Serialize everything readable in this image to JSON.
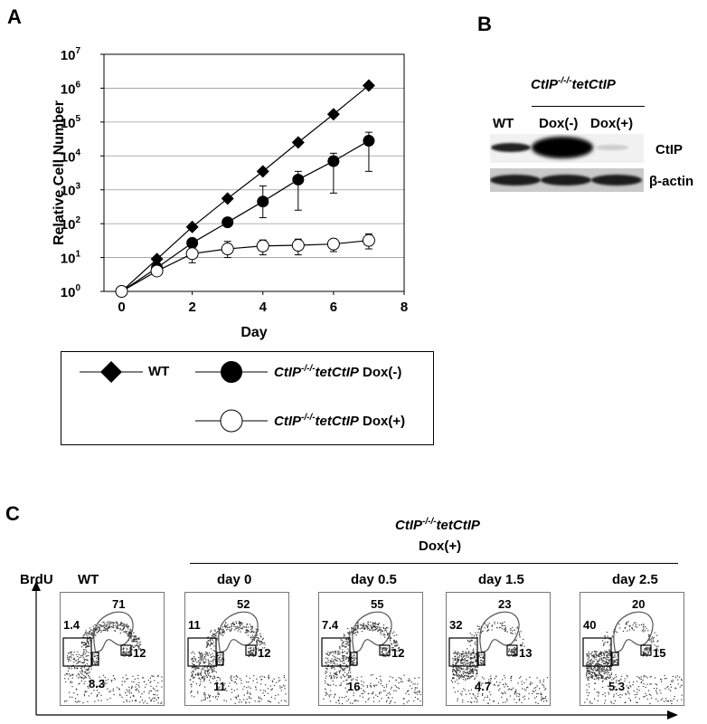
{
  "panel_a": {
    "letter": "A",
    "chart_data": {
      "type": "line",
      "xlabel": "Day",
      "ylabel": "Relative Cell Number",
      "yscale": "log",
      "xlim": [
        -0.5,
        8
      ],
      "ylim": [
        1,
        10000000
      ],
      "x_ticks": [
        "0",
        "2",
        "4",
        "6",
        "8"
      ],
      "y_ticks": [
        {
          "base": "10",
          "exp": "0"
        },
        {
          "base": "10",
          "exp": "1"
        },
        {
          "base": "10",
          "exp": "2"
        },
        {
          "base": "10",
          "exp": "3"
        },
        {
          "base": "10",
          "exp": "4"
        },
        {
          "base": "10",
          "exp": "5"
        },
        {
          "base": "10",
          "exp": "6"
        },
        {
          "base": "10",
          "exp": "7"
        }
      ],
      "grid": "horizontal",
      "series": [
        {
          "name": "WT",
          "marker": "diamond",
          "x": [
            0,
            1,
            2,
            3,
            4,
            5,
            6,
            7
          ],
          "y": [
            1,
            9,
            80,
            550,
            3500,
            25000,
            170000,
            1200000
          ]
        },
        {
          "name": "CtIP-/-/-tetCtIP Dox(-)",
          "marker": "filled-circle",
          "x": [
            0,
            1,
            2,
            3,
            4,
            5,
            6,
            7
          ],
          "y": [
            1,
            5,
            27,
            110,
            450,
            2000,
            7000,
            28000
          ],
          "err_low": [
            1,
            4,
            20,
            90,
            150,
            250,
            800,
            3500
          ],
          "err_high": [
            1,
            6,
            35,
            130,
            1300,
            3500,
            12000,
            50000
          ]
        },
        {
          "name": "CtIP-/-/-tetCtIP Dox(+)",
          "marker": "open-circle",
          "x": [
            0,
            1,
            2,
            3,
            4,
            5,
            6,
            7
          ],
          "y": [
            1,
            4,
            13,
            18,
            22,
            23,
            25,
            32
          ],
          "err_low": [
            1,
            3,
            7,
            10,
            12,
            12,
            15,
            18
          ],
          "err_high": [
            1,
            5,
            25,
            30,
            33,
            35,
            35,
            50
          ]
        }
      ]
    },
    "legend": [
      {
        "label_italic": "",
        "label_plain": "WT"
      },
      {
        "label_italic": "CtIP",
        "sup": "-/-/-",
        "label_italic2": "tetCtIP",
        "label_plain": " Dox(-)"
      },
      {
        "label_italic": "CtIP",
        "sup": "-/-/-",
        "label_italic2": "tetCtIP",
        "label_plain": " Dox(+)"
      }
    ]
  },
  "panel_b": {
    "letter": "B",
    "header_italic": "CtIP",
    "header_sup": "-/-/-",
    "header_italic2": "tetCtIP",
    "lanes": [
      "WT",
      "Dox(-)",
      "Dox(+)"
    ],
    "rows": [
      "CtIP",
      "β-actin"
    ]
  },
  "panel_c": {
    "letter": "C",
    "y_axis_label": "BrdU",
    "group_header_italic": "CtIP",
    "group_header_sup": "-/-/-",
    "group_header_italic2": "tetCtIP",
    "group_header_line2": "Dox(+)",
    "plots": [
      {
        "title": "WT",
        "s": "71",
        "g1": "12",
        "subg1": "1.4",
        "g2": "8.3"
      },
      {
        "title": "day 0",
        "s": "52",
        "g1": "12",
        "subg1": "11",
        "g2": "11"
      },
      {
        "title": "day 0.5",
        "s": "55",
        "g1": "12",
        "subg1": "7.4",
        "g2": "16"
      },
      {
        "title": "day 1.5",
        "s": "23",
        "g1": "13",
        "subg1": "32",
        "g2": "4.7"
      },
      {
        "title": "day 2.5",
        "s": "20",
        "g1": "15",
        "subg1": "40",
        "g2": "5.3"
      }
    ]
  }
}
